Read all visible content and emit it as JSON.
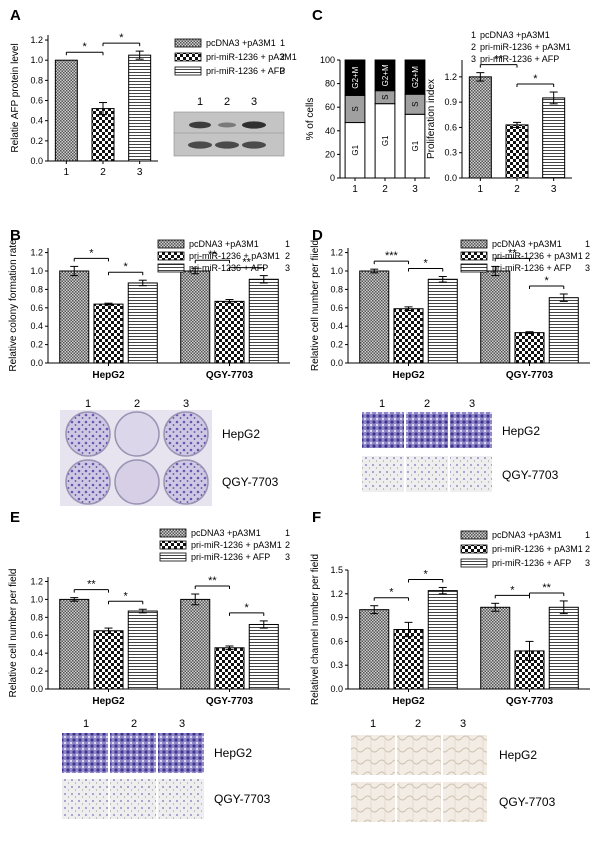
{
  "legend_rows": [
    {
      "text": "pcDNA3 +pA3M1",
      "num": "1"
    },
    {
      "text": "pri-miR-1236 + pA3M1",
      "num": "2"
    },
    {
      "text": "pri-miR-1236 + AFP",
      "num": "3"
    }
  ],
  "colors": {
    "bar1": "#9a9a9a",
    "bar2": "#1a1a1a",
    "bar3": "#cfcfcf",
    "stain": "#6a55b0",
    "g1": "#ffffff",
    "s": "#a0a0a0",
    "g2m": "#000000"
  },
  "panels": {
    "A": {
      "letter": "A",
      "ylabel": "Relatie AFP protein level",
      "blot_lanes": [
        "1",
        "2",
        "3"
      ]
    },
    "C": {
      "letter": "C"
    },
    "B": {
      "letter": "B",
      "img_cols": [
        "1",
        "2",
        "3"
      ],
      "img_rows": [
        "HepG2",
        "QGY-7703"
      ]
    },
    "D": {
      "letter": "D",
      "img_cols": [
        "1",
        "2",
        "3"
      ],
      "img_rows": [
        "HepG2",
        "QGY-7703"
      ]
    },
    "E": {
      "letter": "E",
      "img_cols": [
        "1",
        "2",
        "3"
      ],
      "img_rows": [
        "HepG2",
        "QGY-7703"
      ]
    },
    "F": {
      "letter": "F",
      "img_cols": [
        "1",
        "2",
        "3"
      ],
      "img_rows": [
        "HepG2",
        "QGY-7703"
      ]
    }
  },
  "chart_data": [
    {
      "id": "A",
      "type": "bar",
      "ylabel": "Relatie AFP protein level",
      "categories": [
        "1",
        "2",
        "3"
      ],
      "values": [
        1.0,
        0.52,
        1.05
      ],
      "errors": [
        0.0,
        0.06,
        0.04
      ],
      "ylim": [
        0,
        1.25
      ],
      "yticks": [
        "0.0",
        "0.2",
        "0.4",
        "0.6",
        "0.8",
        "1.0",
        "1.2"
      ],
      "sig": [
        {
          "a": 0,
          "b": 1,
          "label": "*"
        },
        {
          "a": 1,
          "b": 2,
          "label": "*"
        }
      ]
    },
    {
      "id": "C1",
      "type": "bar",
      "ylabel": "% of cells",
      "categories": [
        "1",
        "2",
        "3"
      ],
      "stack_labels": [
        "G1",
        "S",
        "G2+M"
      ],
      "series": [
        {
          "name": "G1",
          "values": [
            47,
            63,
            54
          ]
        },
        {
          "name": "S",
          "values": [
            23,
            11,
            17
          ]
        },
        {
          "name": "G2+M",
          "values": [
            30,
            26,
            29
          ]
        }
      ],
      "ylim": [
        0,
        100
      ],
      "yticks": [
        "0",
        "20",
        "40",
        "60",
        "80",
        "100"
      ]
    },
    {
      "id": "C2",
      "type": "bar",
      "ylabel": "Proliferation index",
      "categories": [
        "1",
        "2",
        "3"
      ],
      "values": [
        1.2,
        0.63,
        0.95
      ],
      "errors": [
        0.05,
        0.03,
        0.07
      ],
      "ylim": [
        0,
        1.4
      ],
      "yticks": [
        "0.0",
        "0.3",
        "0.6",
        "0.9",
        "1.2"
      ],
      "sig": [
        {
          "a": 0,
          "b": 1,
          "label": "**"
        },
        {
          "a": 1,
          "b": 2,
          "label": "*"
        }
      ]
    },
    {
      "id": "B",
      "type": "bar",
      "ylabel": "Relative colony formation rate",
      "categories": [
        "HepG2",
        "QGY-7703"
      ],
      "series": [
        {
          "name": "pcDNA3 +pA3M1",
          "values": [
            1.0,
            1.0
          ],
          "errors": [
            0.05,
            0.03
          ]
        },
        {
          "name": "pri-miR-1236 + pA3M1",
          "values": [
            0.64,
            0.67
          ],
          "errors": [
            0.01,
            0.02
          ]
        },
        {
          "name": "pri-miR-1236 + AFP",
          "values": [
            0.87,
            0.91
          ],
          "errors": [
            0.03,
            0.04
          ]
        }
      ],
      "ylim": [
        0,
        1.25
      ],
      "yticks": [
        "0.0",
        "0.2",
        "0.4",
        "0.6",
        "0.8",
        "1.0",
        "1.2"
      ],
      "sig": [
        {
          "group": 0,
          "a": 0,
          "b": 1,
          "label": "*"
        },
        {
          "group": 0,
          "a": 1,
          "b": 2,
          "label": "*"
        },
        {
          "group": 1,
          "a": 0,
          "b": 1,
          "label": "**"
        },
        {
          "group": 1,
          "a": 1,
          "b": 2,
          "label": "**"
        }
      ]
    },
    {
      "id": "D",
      "type": "bar",
      "ylabel": "Relative cell number per fiield",
      "categories": [
        "HepG2",
        "QGY-7703"
      ],
      "series": [
        {
          "name": "pcDNA3 +pA3M1",
          "values": [
            1.0,
            1.0
          ],
          "errors": [
            0.02,
            0.05
          ]
        },
        {
          "name": "pri-miR-1236 + pA3M1",
          "values": [
            0.59,
            0.33
          ],
          "errors": [
            0.02,
            0.01
          ]
        },
        {
          "name": "pri-miR-1236 + AFP",
          "values": [
            0.91,
            0.71
          ],
          "errors": [
            0.03,
            0.04
          ]
        }
      ],
      "ylim": [
        0,
        1.25
      ],
      "yticks": [
        "0.0",
        "0.2",
        "0.4",
        "0.6",
        "0.8",
        "1.0",
        "1.2"
      ],
      "sig": [
        {
          "group": 0,
          "a": 0,
          "b": 1,
          "label": "***"
        },
        {
          "group": 0,
          "a": 1,
          "b": 2,
          "label": "*"
        },
        {
          "group": 1,
          "a": 0,
          "b": 1,
          "label": "**"
        },
        {
          "group": 1,
          "a": 1,
          "b": 2,
          "label": "*"
        }
      ]
    },
    {
      "id": "E",
      "type": "bar",
      "ylabel": "Relative cell number per field",
      "categories": [
        "HepG2",
        "QGY-7703"
      ],
      "series": [
        {
          "name": "pcDNA3 +pA3M1",
          "values": [
            1.0,
            1.0
          ],
          "errors": [
            0.02,
            0.06
          ]
        },
        {
          "name": "pri-miR-1236 + pA3M1",
          "values": [
            0.65,
            0.46
          ],
          "errors": [
            0.03,
            0.02
          ]
        },
        {
          "name": "pri-miR-1236 + AFP",
          "values": [
            0.87,
            0.72
          ],
          "errors": [
            0.02,
            0.04
          ]
        }
      ],
      "ylim": [
        0,
        1.25
      ],
      "yticks": [
        "0.0",
        "0.2",
        "0.4",
        "0.6",
        "0.8",
        "1.0",
        "1.2"
      ],
      "sig": [
        {
          "group": 0,
          "a": 0,
          "b": 1,
          "label": "**"
        },
        {
          "group": 0,
          "a": 1,
          "b": 2,
          "label": "*"
        },
        {
          "group": 1,
          "a": 0,
          "b": 1,
          "label": "**"
        },
        {
          "group": 1,
          "a": 1,
          "b": 2,
          "label": "*"
        }
      ]
    },
    {
      "id": "F",
      "type": "bar",
      "ylabel": "Relativel channel number per field",
      "categories": [
        "HepG2",
        "QGY-7703"
      ],
      "series": [
        {
          "name": "pcDNA3 +pA3M1",
          "values": [
            1.0,
            1.03
          ],
          "errors": [
            0.05,
            0.05
          ]
        },
        {
          "name": "pri-miR-1236 + pA3M1",
          "values": [
            0.75,
            0.48
          ],
          "errors": [
            0.09,
            0.12
          ]
        },
        {
          "name": "pri-miR-1236 + AFP",
          "values": [
            1.24,
            1.03
          ],
          "errors": [
            0.04,
            0.08
          ]
        }
      ],
      "ylim": [
        0,
        1.5
      ],
      "yticks": [
        "0.0",
        "0.3",
        "0.6",
        "0.9",
        "1.2",
        "1.5"
      ],
      "sig": [
        {
          "group": 0,
          "a": 0,
          "b": 1,
          "label": "*"
        },
        {
          "group": 0,
          "a": 1,
          "b": 2,
          "label": "*"
        },
        {
          "group": 1,
          "a": 0,
          "b": 1,
          "label": "*"
        },
        {
          "group": 1,
          "a": 1,
          "b": 2,
          "label": "**"
        }
      ]
    }
  ]
}
